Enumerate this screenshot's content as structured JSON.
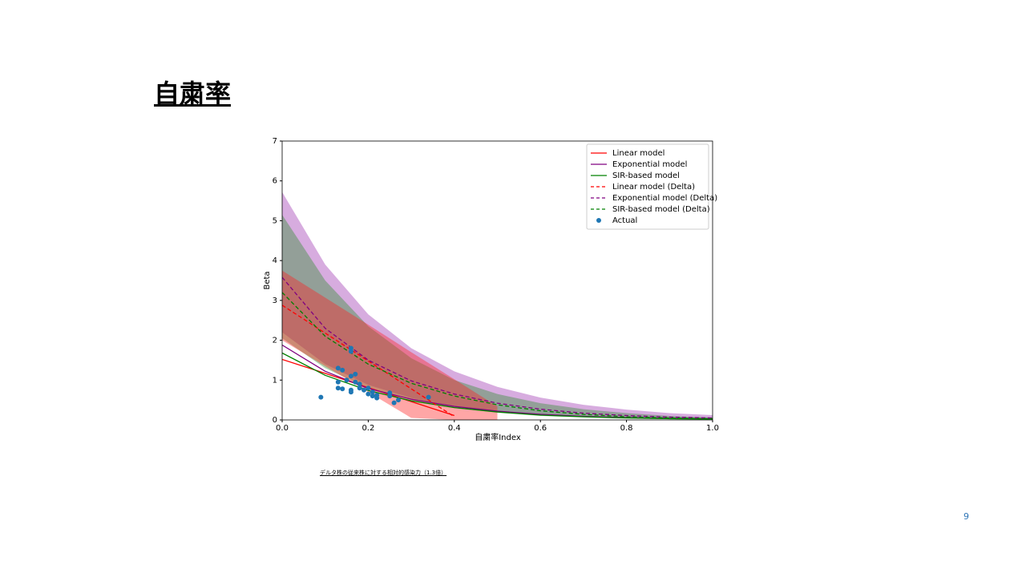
{
  "header": {
    "title": "自粛率"
  },
  "footnote": "デルタ株の従来株に対する相対的感染力（1.3倍）",
  "page_number": "9",
  "chart_data": {
    "type": "line",
    "xlabel": "自粛率Index",
    "ylabel": "Beta",
    "xlim": [
      0,
      1
    ],
    "ylim": [
      0,
      7
    ],
    "xticks": [
      {
        "value": 0,
        "label": "0.0"
      },
      0.2,
      0.4,
      0.6,
      0.8,
      {
        "value": 1,
        "label": "1.0"
      }
    ],
    "yticks": [
      0,
      1,
      2,
      3,
      4,
      5,
      6,
      7
    ],
    "legend": "upper right",
    "x": [
      0,
      0.1,
      0.2,
      0.3,
      0.4,
      0.5,
      0.6,
      0.7,
      0.8,
      0.9,
      1
    ],
    "bands": [
      {
        "color": "#9b30b0",
        "upper": [
          5.72,
          3.9,
          2.65,
          1.8,
          1.22,
          0.83,
          0.56,
          0.38,
          0.26,
          0.17,
          0.12
        ],
        "lower": [
          2.2,
          1.4,
          0.88,
          0.55,
          0.35,
          0.22,
          0.13,
          0.08,
          0.05,
          0.03,
          0.02
        ]
      },
      {
        "color": "#2e8b2e",
        "upper": [
          5.15,
          3.5,
          2.35,
          1.55,
          1.0,
          0.65,
          0.42,
          0.27,
          0.17,
          0.1,
          0.06
        ],
        "lower": [
          2.05,
          1.3,
          0.8,
          0.5,
          0.3,
          0.18,
          0.1,
          0.06,
          0.03,
          0.02,
          0.01
        ]
      },
      {
        "color": "#ff2020",
        "upper": [
          3.75,
          3.07,
          2.39,
          1.7,
          1.02,
          0.34,
          null,
          null,
          null,
          null,
          null
        ],
        "lower": [
          2.0,
          1.35,
          0.7,
          0.05,
          null,
          null,
          null,
          null,
          null,
          null,
          null
        ]
      }
    ],
    "series": [
      {
        "name": "Linear model",
        "color": "#ff0000",
        "linestyle": "solid",
        "values": [
          1.52,
          1.17,
          0.81,
          0.46,
          0.11,
          null,
          null,
          null,
          null,
          null,
          null
        ]
      },
      {
        "name": "Exponential model",
        "color": "#800080",
        "linestyle": "solid",
        "values": [
          1.88,
          1.22,
          0.79,
          0.52,
          0.34,
          0.22,
          0.14,
          0.09,
          0.06,
          0.04,
          0.03
        ]
      },
      {
        "name": "SIR-based model",
        "color": "#008000",
        "linestyle": "solid",
        "values": [
          1.68,
          1.12,
          0.74,
          0.48,
          0.31,
          0.2,
          0.12,
          0.08,
          0.05,
          0.03,
          0.02
        ]
      },
      {
        "name": "Linear model (Delta)",
        "color": "#ff0000",
        "linestyle": "dashed",
        "values": [
          2.88,
          2.18,
          1.48,
          0.78,
          0.08,
          null,
          null,
          null,
          null,
          null,
          null
        ]
      },
      {
        "name": "Exponential model (Delta)",
        "color": "#800080",
        "linestyle": "dashed",
        "values": [
          3.58,
          2.3,
          1.5,
          0.98,
          0.65,
          0.42,
          0.27,
          0.17,
          0.11,
          0.07,
          0.05
        ]
      },
      {
        "name": "SIR-based model (Delta)",
        "color": "#008000",
        "linestyle": "dashed",
        "values": [
          3.2,
          2.1,
          1.4,
          0.92,
          0.6,
          0.38,
          0.23,
          0.14,
          0.08,
          0.05,
          0.03
        ]
      }
    ],
    "scatter": {
      "name": "Actual",
      "color": "#1f77b4",
      "x": [
        0.09,
        0.13,
        0.13,
        0.13,
        0.14,
        0.14,
        0.15,
        0.16,
        0.16,
        0.16,
        0.16,
        0.16,
        0.17,
        0.17,
        0.18,
        0.18,
        0.19,
        0.2,
        0.2,
        0.21,
        0.21,
        0.22,
        0.22,
        0.25,
        0.25,
        0.26,
        0.27,
        0.34
      ],
      "values": [
        0.57,
        1.3,
        0.95,
        0.8,
        0.78,
        1.25,
        1.0,
        1.8,
        1.72,
        1.1,
        0.75,
        0.7,
        1.15,
        0.95,
        0.8,
        0.9,
        0.75,
        0.65,
        0.8,
        0.6,
        0.7,
        0.55,
        0.62,
        0.6,
        0.68,
        0.43,
        0.5,
        0.57
      ]
    }
  }
}
